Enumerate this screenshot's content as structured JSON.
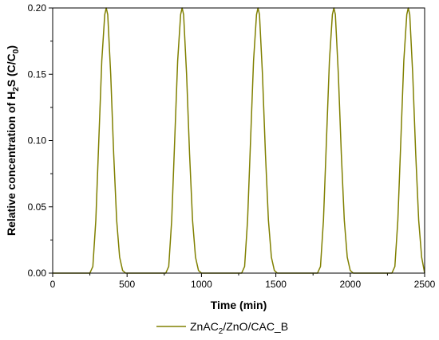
{
  "chart_data": {
    "type": "line",
    "xlabel": "Time (min)",
    "ylabel_parts": {
      "a": "Relative concentration of H",
      "b": "2",
      "c": "S (C/C",
      "d": "0",
      "e": ")"
    },
    "xlim": [
      0,
      2500
    ],
    "ylim": [
      0,
      0.2
    ],
    "x_ticks": [
      "0",
      "500",
      "1000",
      "1500",
      "2000",
      "2500"
    ],
    "y_ticks": [
      "0.00",
      "0.05",
      "0.10",
      "0.15",
      "0.20"
    ],
    "grid": false,
    "legend_position": "bottom-center",
    "legend_parts": {
      "a": "ZnAC",
      "b": "2",
      "c": "/ZnO/CAC_B"
    },
    "series": [
      {
        "color": "#808000",
        "x": [
          0,
          250,
          270,
          290,
          310,
          330,
          350,
          360,
          370,
          390,
          410,
          430,
          450,
          470,
          490,
          760,
          780,
          800,
          820,
          840,
          860,
          870,
          880,
          900,
          920,
          940,
          960,
          980,
          1000,
          1270,
          1290,
          1310,
          1330,
          1350,
          1370,
          1380,
          1390,
          1410,
          1430,
          1450,
          1470,
          1490,
          1510,
          1780,
          1800,
          1820,
          1840,
          1860,
          1880,
          1890,
          1900,
          1920,
          1940,
          1960,
          1980,
          2000,
          2020,
          2280,
          2300,
          2320,
          2340,
          2360,
          2380,
          2390,
          2400,
          2420,
          2440,
          2460,
          2480,
          2500
        ],
        "y": [
          0,
          0,
          0.005,
          0.04,
          0.1,
          0.16,
          0.195,
          0.2,
          0.195,
          0.15,
          0.09,
          0.04,
          0.012,
          0.002,
          0,
          0,
          0.005,
          0.04,
          0.1,
          0.16,
          0.195,
          0.2,
          0.195,
          0.15,
          0.09,
          0.04,
          0.012,
          0.002,
          0,
          0,
          0.005,
          0.04,
          0.1,
          0.16,
          0.195,
          0.2,
          0.195,
          0.15,
          0.09,
          0.04,
          0.012,
          0.002,
          0,
          0,
          0.005,
          0.04,
          0.1,
          0.16,
          0.195,
          0.2,
          0.195,
          0.15,
          0.09,
          0.04,
          0.012,
          0.002,
          0,
          0,
          0.005,
          0.04,
          0.1,
          0.16,
          0.195,
          0.2,
          0.195,
          0.15,
          0.09,
          0.04,
          0.012,
          0
        ]
      }
    ]
  }
}
